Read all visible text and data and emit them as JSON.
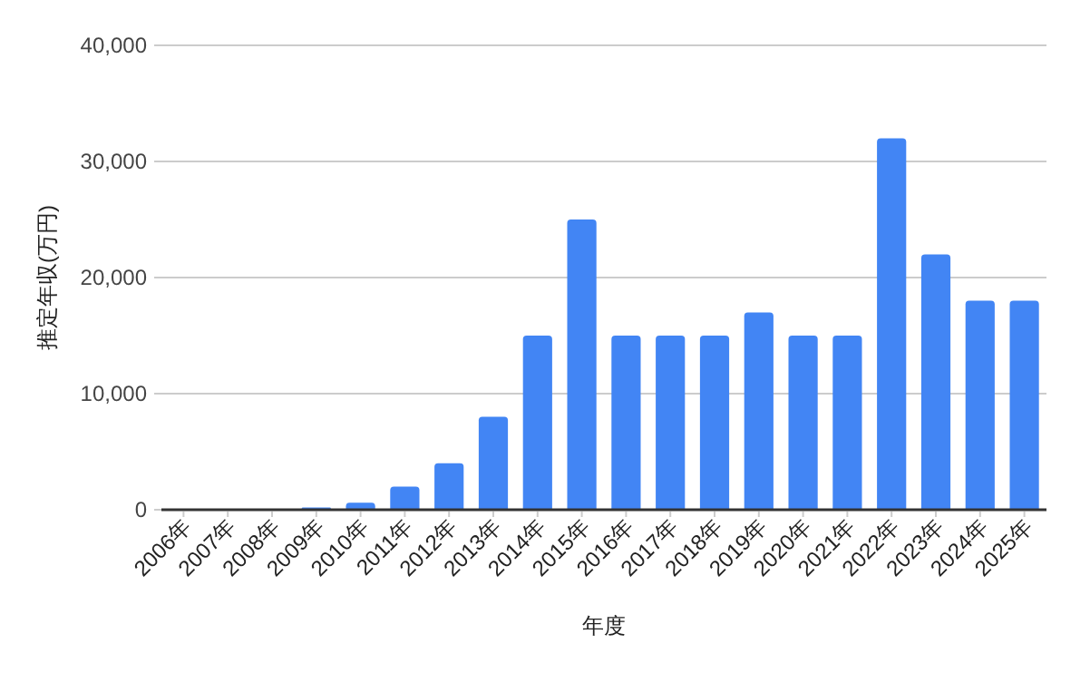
{
  "chart_data": {
    "type": "bar",
    "xlabel": "年度",
    "ylabel": "推定年収(万円)",
    "categories": [
      "2006年",
      "2007年",
      "2008年",
      "2009年",
      "2010年",
      "2011年",
      "2012年",
      "2013年",
      "2014年",
      "2015年",
      "2016年",
      "2017年",
      "2018年",
      "2019年",
      "2020年",
      "2021年",
      "2022年",
      "2023年",
      "2024年",
      "2025年"
    ],
    "values": [
      0,
      0,
      0,
      200,
      600,
      2000,
      4000,
      8000,
      15000,
      25000,
      15000,
      15000,
      15000,
      17000,
      15000,
      15000,
      32000,
      22000,
      18000,
      18000
    ],
    "color": "#4285f4",
    "ylim": [
      0,
      40000
    ],
    "yticks": [
      {
        "value": 0,
        "label": "0"
      },
      {
        "value": 10000,
        "label": "10,000"
      },
      {
        "value": 20000,
        "label": "20,000"
      },
      {
        "value": 30000,
        "label": "30,000"
      },
      {
        "value": 40000,
        "label": "40,000"
      }
    ],
    "grid": "y"
  }
}
